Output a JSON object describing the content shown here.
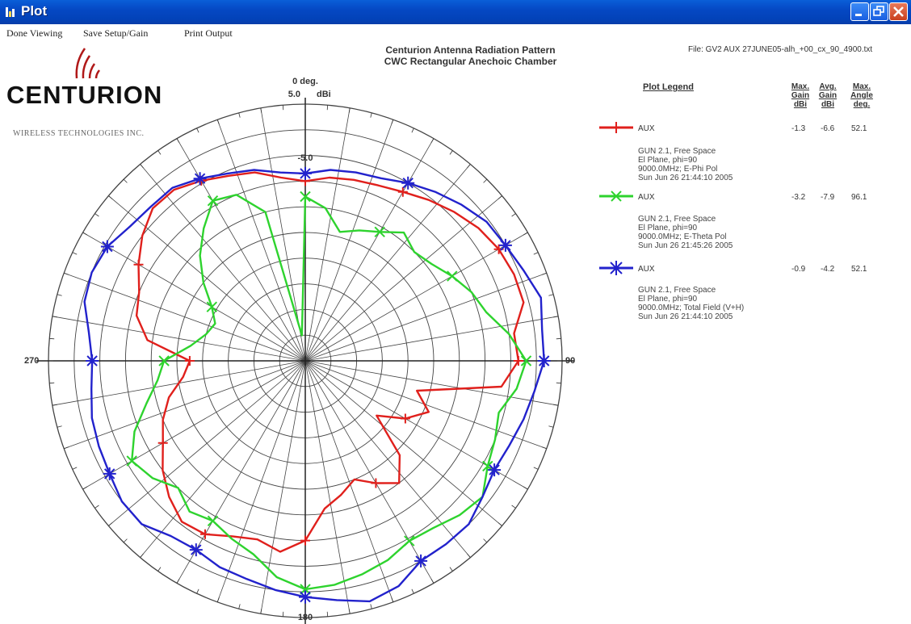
{
  "window": {
    "title": "Plot"
  },
  "menu": [
    "Done Viewing",
    "Save Setup/Gain",
    "Print Output"
  ],
  "header": {
    "line1": "Centurion Antenna Radiation Pattern",
    "line2": "CWC Rectangular Anechoic Chamber",
    "file": "File: GV2 AUX 27JUNE05-alh_+00_cx_90_4900.txt"
  },
  "logo": {
    "name": "CENTURION",
    "tagline": "WIRELESS TECHNOLOGIES INC."
  },
  "colors": {
    "titlebar": "#0548c4",
    "aux_red": "#e0201c",
    "aux_green": "#2ed32e",
    "aux_blue": "#2222cc"
  },
  "chart_data": {
    "type": "polar",
    "title": "Centurion Antenna Radiation Pattern",
    "units": "dBi",
    "range_max": 5.0,
    "top_label": "0 deg.",
    "top_value": "5.0",
    "top_unit": "dBi",
    "ring_label": "-5.0",
    "angle_labels": {
      "right": "90",
      "bottom": "180",
      "left": "270"
    },
    "series": [
      {
        "name": "AUX",
        "color": "#e0201c",
        "marker": "plus",
        "r": [
          0.7,
          0.72,
          0.73,
          0.74,
          0.76,
          0.79,
          0.82,
          0.85,
          0.87,
          0.88,
          0.88,
          0.82,
          0.83,
          0.77,
          0.45,
          0.52,
          0.45,
          0.35,
          0.52,
          0.6,
          0.55,
          0.5,
          0.54,
          0.58,
          0.7,
          0.75,
          0.72,
          0.74,
          0.78,
          0.79,
          0.75,
          0.7,
          0.64,
          0.6,
          0.55,
          0.48,
          0.45,
          0.62,
          0.68,
          0.7,
          0.75,
          0.8,
          0.84,
          0.84,
          0.81,
          0.78,
          0.76,
          0.72
        ]
      },
      {
        "name": "AUX",
        "color": "#2ed32e",
        "marker": "x",
        "r": [
          0.64,
          0.6,
          0.52,
          0.55,
          0.58,
          0.63,
          0.6,
          0.62,
          0.66,
          0.7,
          0.73,
          0.8,
          0.86,
          0.83,
          0.78,
          0.8,
          0.82,
          0.87,
          0.85,
          0.82,
          0.81,
          0.84,
          0.86,
          0.88,
          0.89,
          0.85,
          0.78,
          0.75,
          0.72,
          0.74,
          0.7,
          0.75,
          0.78,
          0.72,
          0.64,
          0.58,
          0.55,
          0.45,
          0.4,
          0.38,
          0.42,
          0.5,
          0.58,
          0.65,
          0.72,
          0.7,
          0.6,
          0.1
        ]
      },
      {
        "name": "AUX",
        "color": "#2222cc",
        "marker": "star",
        "r": [
          0.73,
          0.75,
          0.76,
          0.77,
          0.8,
          0.83,
          0.86,
          0.89,
          0.9,
          0.92,
          0.95,
          0.93,
          0.93,
          0.9,
          0.88,
          0.86,
          0.85,
          0.87,
          0.9,
          0.9,
          0.9,
          0.95,
          0.97,
          0.94,
          0.92,
          0.9,
          0.88,
          0.87,
          0.85,
          0.86,
          0.9,
          0.9,
          0.88,
          0.87,
          0.86,
          0.84,
          0.83,
          0.85,
          0.89,
          0.9,
          0.89,
          0.86,
          0.85,
          0.85,
          0.82,
          0.79,
          0.77,
          0.74
        ]
      }
    ]
  },
  "legend": {
    "title": "Plot Legend",
    "col_max_gain": "Max. Gain dBi",
    "col_avg_gain": "Avg. Gain dBi",
    "col_max_angle": "Max. Angle deg.",
    "entries": [
      {
        "name": "AUX",
        "max": "-1.3",
        "avg": "-6.6",
        "angle": "52.1",
        "desc": [
          "GUN 2.1, Free Space",
          "El Plane, phi=90",
          "9000.0MHz; E-Phi Pol",
          "Sun Jun 26 21:44:10 2005"
        ]
      },
      {
        "name": "AUX",
        "max": "-3.2",
        "avg": "-7.9",
        "angle": "96.1",
        "desc": [
          "GUN 2.1, Free Space",
          "El Plane, phi=90",
          "9000.0MHz; E-Theta Pol",
          "Sun Jun 26 21:45:26 2005"
        ]
      },
      {
        "name": "AUX",
        "max": "-0.9",
        "avg": "-4.2",
        "angle": "52.1",
        "desc": [
          "GUN 2.1, Free Space",
          "El Plane, phi=90",
          "9000.0MHz; Total Field (V+H)",
          "Sun Jun 26 21:44:10 2005"
        ]
      }
    ]
  }
}
